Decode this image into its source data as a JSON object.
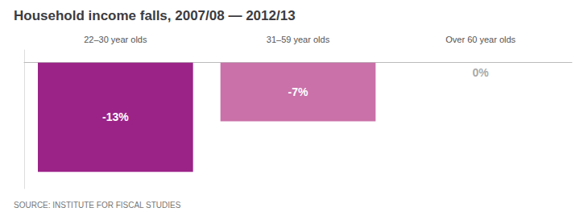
{
  "chart_data": {
    "type": "bar",
    "title": "Household income falls, 2007/08 — 2012/13",
    "annotations": [
      "SOURCE: INSTITUTE FOR FISCAL STUDIES"
    ],
    "categories": [
      "22–30 year olds",
      "31–59 year olds",
      "Over 60 year olds"
    ],
    "values": [
      -13,
      -7,
      0
    ],
    "value_labels": [
      "-13%",
      "-7%",
      "0%"
    ],
    "colors": [
      "#9b2388",
      "#c971a8",
      "#cccccc"
    ],
    "data_labels": true,
    "ylim": [
      -15,
      1.5
    ],
    "tick_labels": "x",
    "grid": false
  }
}
